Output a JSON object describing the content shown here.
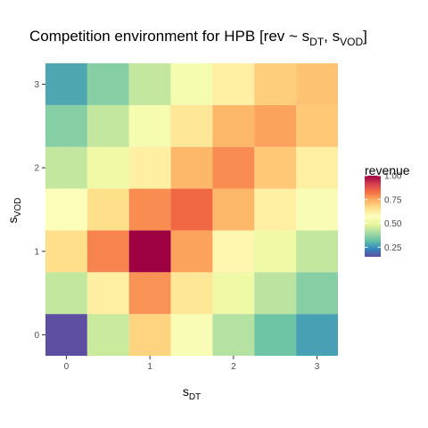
{
  "chart_data": {
    "type": "heatmap",
    "title_main": "Competition environment for HPB [rev ~ s",
    "title_sub1": "DT",
    "title_mid": ", s",
    "title_sub2": "VOD",
    "title_end": "]",
    "xlabel_main": "s",
    "xlabel_sub": "DT",
    "ylabel_main": "s",
    "ylabel_sub": "VOD",
    "x_ticks": [
      "0",
      "1",
      "2",
      "3"
    ],
    "y_ticks": [
      "0",
      "1",
      "2",
      "3"
    ],
    "xlim": [
      -0.25,
      3.25
    ],
    "ylim": [
      -0.25,
      3.25
    ],
    "x": [
      0,
      0.5,
      1,
      1.5,
      2,
      2.5,
      3
    ],
    "y": [
      0,
      0.5,
      1,
      1.5,
      2,
      2.5,
      3
    ],
    "z": [
      [
        0.15,
        0.45,
        0.68,
        0.55,
        0.42,
        0.33,
        0.27
      ],
      [
        0.44,
        0.62,
        0.78,
        0.64,
        0.52,
        0.43,
        0.36
      ],
      [
        0.66,
        0.8,
        1.0,
        0.76,
        0.6,
        0.52,
        0.44
      ],
      [
        0.56,
        0.66,
        0.79,
        0.84,
        0.73,
        0.62,
        0.55
      ],
      [
        0.44,
        0.52,
        0.62,
        0.73,
        0.79,
        0.7,
        0.62
      ],
      [
        0.36,
        0.44,
        0.54,
        0.64,
        0.73,
        0.76,
        0.7
      ],
      [
        0.28,
        0.36,
        0.44,
        0.54,
        0.62,
        0.69,
        0.71
      ]
    ],
    "grid": true,
    "legend": {
      "title": "revenue",
      "position": "right",
      "ticks": [
        "0.25",
        "0.50",
        "0.75",
        "1.00"
      ],
      "tick_values": [
        0.25,
        0.5,
        0.75,
        1.0
      ],
      "range": [
        0.15,
        1.0
      ],
      "colors": [
        "#5E4FA2",
        "#3288BD",
        "#66C2A5",
        "#ABDDA4",
        "#E6F598",
        "#FFFFBF",
        "#FEE08B",
        "#FDAE61",
        "#F46D43",
        "#D53E4F",
        "#9E0142"
      ]
    },
    "panel_color": "#EBEBEB",
    "gridline_color": "#FFFFFF"
  }
}
